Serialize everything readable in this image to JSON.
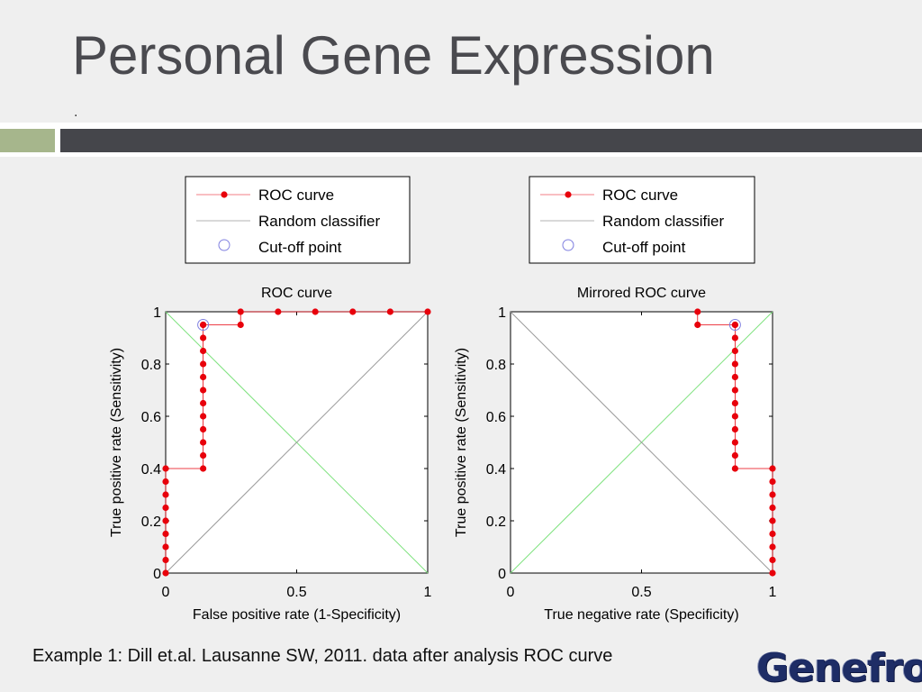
{
  "slide": {
    "title": "Personal Gene Expression",
    "subtitle": ".",
    "caption": "Example 1: Dill et.al. Lausanne SW, 2011. data after analysis ROC curve",
    "brand": "Genefron"
  },
  "colors": {
    "roc": "#e8000b",
    "random": "#9a9a9a",
    "diagonal_alt": "#7ee27e",
    "cutoff": "#8080e0",
    "title_text": "#4a4a4f",
    "band_green": "#a6b68c",
    "band_dark": "#45464b",
    "brand": "#1e2d66"
  },
  "chart_data": [
    {
      "type": "line",
      "title": "ROC curve",
      "xlabel": "False positive rate (1-Specificity)",
      "ylabel": "True positive rate (Sensitivity)",
      "xlim": [
        0,
        1
      ],
      "ylim": [
        0,
        1
      ],
      "xticks": [
        "0",
        "0.5",
        "1"
      ],
      "yticks": [
        "0",
        "0.2",
        "0.4",
        "0.6",
        "0.8",
        "1"
      ],
      "legend": {
        "placement": "top",
        "entries": [
          "ROC curve",
          "Random classifier",
          "Cut-off point"
        ]
      },
      "grid": false,
      "series": [
        {
          "name": "ROC curve",
          "x": [
            0,
            0,
            0,
            0,
            0,
            0,
            0,
            0,
            0,
            0.143,
            0.143,
            0.143,
            0.143,
            0.143,
            0.143,
            0.143,
            0.143,
            0.143,
            0.143,
            0.143,
            0.143,
            0.143,
            0.286,
            0.286,
            0.429,
            0.571,
            0.714,
            0.857,
            1
          ],
          "y": [
            0,
            0.05,
            0.1,
            0.15,
            0.2,
            0.25,
            0.3,
            0.35,
            0.4,
            0.4,
            0.45,
            0.5,
            0.55,
            0.6,
            0.65,
            0.7,
            0.75,
            0.8,
            0.85,
            0.9,
            0.95,
            0.95,
            0.95,
            1,
            1,
            1,
            1,
            1,
            1
          ]
        },
        {
          "name": "Random classifier",
          "x": [
            0,
            1
          ],
          "y": [
            0,
            1
          ]
        },
        {
          "name": "Cut-off point",
          "x": [
            0.143
          ],
          "y": [
            0.95
          ]
        }
      ],
      "extra_lines": [
        {
          "x": [
            0,
            1
          ],
          "y": [
            1,
            0
          ]
        }
      ]
    },
    {
      "type": "line",
      "title": "Mirrored ROC curve",
      "xlabel": "True negative rate (Specificity)",
      "ylabel": "True positive rate (Sensitivity)",
      "xlim": [
        0,
        1
      ],
      "ylim": [
        0,
        1
      ],
      "xticks": [
        "0",
        "0.5",
        "1"
      ],
      "yticks": [
        "0",
        "0.2",
        "0.4",
        "0.6",
        "0.8",
        "1"
      ],
      "legend": {
        "placement": "top",
        "entries": [
          "ROC curve",
          "Random classifier",
          "Cut-off point"
        ]
      },
      "grid": false,
      "series": [
        {
          "name": "ROC curve",
          "x": [
            1,
            1,
            1,
            1,
            1,
            1,
            1,
            1,
            1,
            0.857,
            0.857,
            0.857,
            0.857,
            0.857,
            0.857,
            0.857,
            0.857,
            0.857,
            0.857,
            0.857,
            0.857,
            0.857,
            0.714,
            0.714
          ],
          "y": [
            0,
            0.05,
            0.1,
            0.15,
            0.2,
            0.25,
            0.3,
            0.35,
            0.4,
            0.4,
            0.45,
            0.5,
            0.55,
            0.6,
            0.65,
            0.7,
            0.75,
            0.8,
            0.85,
            0.9,
            0.95,
            0.95,
            0.95,
            1
          ]
        },
        {
          "name": "Random classifier",
          "x": [
            1,
            0
          ],
          "y": [
            0,
            1
          ]
        },
        {
          "name": "Cut-off point",
          "x": [
            0.857
          ],
          "y": [
            0.95
          ]
        }
      ],
      "extra_lines": [
        {
          "x": [
            0,
            1
          ],
          "y": [
            0,
            1
          ]
        }
      ]
    }
  ]
}
